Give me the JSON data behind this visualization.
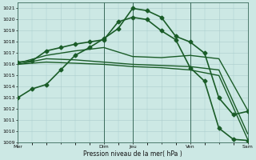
{
  "xlabel": "Pression niveau de la mer( hPa )",
  "ylim": [
    1009,
    1021.5
  ],
  "yticks": [
    1009,
    1010,
    1011,
    1012,
    1013,
    1014,
    1015,
    1016,
    1017,
    1018,
    1019,
    1020,
    1021
  ],
  "xtick_labels": [
    "Mer",
    "",
    "Dim",
    "Jeu",
    "",
    "Ven",
    "",
    "Sam"
  ],
  "xtick_positions": [
    0,
    1.5,
    3,
    4,
    5,
    6,
    7,
    8
  ],
  "bg_color": "#cce8e4",
  "grid_color": "#aacccc",
  "line_color": "#1a5c28",
  "total_x": 8,
  "series": [
    {
      "x": [
        0,
        0.5,
        1,
        1.5,
        2,
        2.5,
        3,
        3.5,
        4,
        4.5,
        5,
        5.5,
        6,
        6.5,
        7,
        7.5,
        8
      ],
      "y": [
        1013.0,
        1013.8,
        1014.2,
        1015.5,
        1016.8,
        1017.5,
        1018.3,
        1019.2,
        1021.0,
        1020.8,
        1020.2,
        1018.5,
        1018.0,
        1017.0,
        1013.0,
        1011.5,
        1011.8
      ],
      "marker": "D",
      "markersize": 2.5,
      "linewidth": 1.2,
      "color": "#1a5c28"
    },
    {
      "x": [
        0,
        0.5,
        1,
        1.5,
        2,
        2.5,
        3,
        3.5,
        4,
        4.5,
        5,
        5.5,
        6,
        6.5,
        7,
        7.5,
        8
      ],
      "y": [
        1016.2,
        1016.3,
        1017.2,
        1017.5,
        1017.8,
        1018.0,
        1018.2,
        1019.8,
        1020.2,
        1020.0,
        1019.0,
        1018.2,
        1015.7,
        1014.5,
        1010.3,
        1009.3,
        1009.2
      ],
      "marker": "D",
      "markersize": 2.5,
      "linewidth": 1.2,
      "color": "#1a5c28"
    },
    {
      "x": [
        0,
        1,
        2,
        3,
        4,
        5,
        6,
        7,
        8
      ],
      "y": [
        1016.1,
        1016.8,
        1017.2,
        1017.5,
        1016.7,
        1016.6,
        1016.8,
        1016.5,
        1011.9
      ],
      "marker": null,
      "markersize": 0,
      "linewidth": 1.0,
      "color": "#1a5c28"
    },
    {
      "x": [
        0,
        1,
        2,
        3,
        4,
        5,
        6,
        7,
        8
      ],
      "y": [
        1016.0,
        1016.5,
        1016.4,
        1016.2,
        1016.0,
        1015.9,
        1015.8,
        1015.5,
        1009.8
      ],
      "marker": null,
      "markersize": 0,
      "linewidth": 1.0,
      "color": "#1a5c28"
    },
    {
      "x": [
        0,
        1,
        2,
        3,
        4,
        5,
        6,
        7,
        8
      ],
      "y": [
        1016.0,
        1016.2,
        1016.1,
        1016.0,
        1015.8,
        1015.7,
        1015.5,
        1015.0,
        1009.3
      ],
      "marker": null,
      "markersize": 0,
      "linewidth": 1.0,
      "color": "#1a5c28"
    }
  ],
  "vline_positions": [
    3,
    4,
    6,
    8
  ],
  "vline_color": "#3a6a5a"
}
